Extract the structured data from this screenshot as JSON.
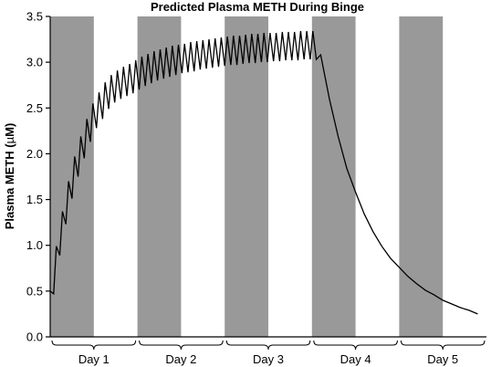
{
  "chart_data": {
    "type": "line",
    "title": "Predicted Plasma METH During Binge",
    "ylabel_prefix": "Plasma METH (",
    "ylabel_unit_symbol": "µ",
    "ylabel_suffix": "M)",
    "xlabel": "",
    "ylim": [
      0,
      3.5
    ],
    "yticks": [
      "0.0",
      "0.5",
      "1.0",
      "1.5",
      "2.0",
      "2.5",
      "3.0",
      "3.5"
    ],
    "xlim_days": [
      0,
      5
    ],
    "grid": false,
    "legend": "none",
    "day_labels": [
      "Day 1",
      "Day 2",
      "Day 3",
      "Day 4",
      "Day 5"
    ],
    "shaded_periods_days": [
      [
        0,
        0.5
      ],
      [
        1,
        1.5
      ],
      [
        2,
        2.5
      ],
      [
        3,
        3.5
      ],
      [
        4,
        4.5
      ]
    ],
    "series": [
      {
        "x_days": [
          0,
          0.04,
          0.07,
          0.11,
          0.14,
          0.18,
          0.21,
          0.25,
          0.28,
          0.32,
          0.35,
          0.39,
          0.42,
          0.46,
          0.49,
          0.53,
          0.56,
          0.6,
          0.63,
          0.67,
          0.7,
          0.74,
          0.77,
          0.81,
          0.84,
          0.88,
          0.91,
          0.95,
          0.98,
          1.02,
          1.05,
          1.09,
          1.12,
          1.16,
          1.19,
          1.23,
          1.26,
          1.3,
          1.33,
          1.37,
          1.4,
          1.44,
          1.47,
          1.51,
          1.54,
          1.58,
          1.61,
          1.65,
          1.68,
          1.72,
          1.75,
          1.79,
          1.82,
          1.86,
          1.89,
          1.93,
          1.96,
          2.0,
          2.03,
          2.07,
          2.1,
          2.14,
          2.17,
          2.21,
          2.24,
          2.28,
          2.31,
          2.35,
          2.38,
          2.42,
          2.45,
          2.49,
          2.52,
          2.56,
          2.59,
          2.63,
          2.66,
          2.7,
          2.73,
          2.77,
          2.8,
          2.84,
          2.87,
          2.91,
          2.94,
          2.98,
          3.01,
          3.05,
          3.1,
          3.2,
          3.3,
          3.4,
          3.5,
          3.6,
          3.7,
          3.8,
          3.9,
          4.0,
          4.1,
          4.2,
          4.3,
          4.4,
          4.5,
          4.6,
          4.7,
          4.8,
          4.9
        ],
        "y": [
          0.5,
          0.47,
          0.99,
          0.89,
          1.37,
          1.23,
          1.7,
          1.51,
          1.97,
          1.75,
          2.19,
          1.95,
          2.38,
          2.13,
          2.55,
          2.28,
          2.67,
          2.38,
          2.78,
          2.49,
          2.86,
          2.56,
          2.91,
          2.6,
          2.95,
          2.63,
          2.98,
          2.66,
          3.02,
          2.7,
          3.06,
          2.74,
          3.09,
          2.77,
          3.12,
          2.8,
          3.14,
          2.82,
          3.16,
          2.84,
          3.18,
          2.86,
          3.19,
          2.88,
          3.2,
          2.89,
          3.22,
          2.9,
          3.23,
          2.92,
          3.24,
          2.93,
          3.25,
          2.94,
          3.26,
          2.95,
          3.27,
          2.96,
          3.28,
          2.97,
          3.29,
          2.97,
          3.29,
          2.98,
          3.3,
          2.99,
          3.31,
          2.99,
          3.31,
          3.0,
          3.32,
          3.0,
          3.32,
          3.01,
          3.32,
          3.01,
          3.33,
          3.02,
          3.33,
          3.02,
          3.33,
          3.02,
          3.34,
          3.03,
          3.34,
          3.03,
          3.34,
          3.03,
          3.08,
          2.6,
          2.19,
          1.84,
          1.58,
          1.34,
          1.15,
          0.99,
          0.86,
          0.76,
          0.66,
          0.58,
          0.51,
          0.46,
          0.4,
          0.36,
          0.32,
          0.29,
          0.25
        ]
      }
    ]
  }
}
